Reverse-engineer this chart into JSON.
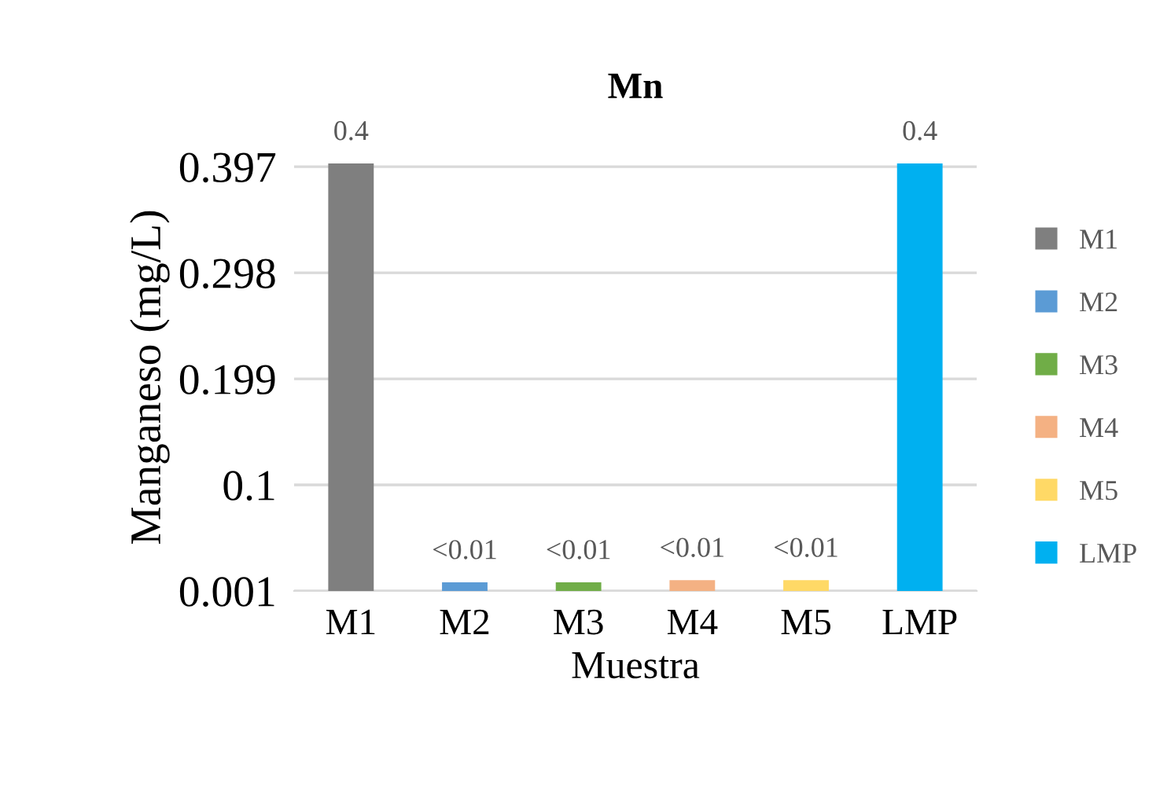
{
  "chart_data": {
    "type": "bar",
    "title": "Mn",
    "xlabel": "Muestra",
    "ylabel": "Manganeso (mg/L)",
    "categories": [
      "M1",
      "M2",
      "M3",
      "M4",
      "M5",
      "LMP"
    ],
    "series": [
      {
        "name": "M1",
        "color": "#7f7f7f",
        "values": [
          0.4,
          null,
          null,
          null,
          null,
          null
        ],
        "value_labels": [
          "0.4",
          null,
          null,
          null,
          null,
          null
        ]
      },
      {
        "name": "M2",
        "color": "#5b9bd5",
        "values": [
          null,
          0.009,
          null,
          null,
          null,
          null
        ],
        "value_labels": [
          null,
          "<0.01",
          null,
          null,
          null,
          null
        ]
      },
      {
        "name": "M3",
        "color": "#70ad47",
        "values": [
          null,
          null,
          0.009,
          null,
          null,
          null
        ],
        "value_labels": [
          null,
          null,
          "<0.01",
          null,
          null,
          null
        ]
      },
      {
        "name": "M4",
        "color": "#f4b183",
        "values": [
          null,
          null,
          null,
          0.011,
          null,
          null
        ],
        "value_labels": [
          null,
          null,
          null,
          "<0.01",
          null,
          null
        ]
      },
      {
        "name": "M5",
        "color": "#ffd966",
        "values": [
          null,
          null,
          null,
          null,
          0.011,
          null
        ],
        "value_labels": [
          null,
          null,
          null,
          null,
          "<0.01",
          null
        ]
      },
      {
        "name": "LMP",
        "color": "#00b0f0",
        "values": [
          null,
          null,
          null,
          null,
          null,
          0.4
        ],
        "value_labels": [
          null,
          null,
          null,
          null,
          null,
          "0.4"
        ]
      }
    ],
    "ylim": [
      0.001,
      0.4
    ],
    "yticks": [
      0.001,
      0.1,
      0.199,
      0.298,
      0.397
    ],
    "grid": "y",
    "legend": "right"
  }
}
